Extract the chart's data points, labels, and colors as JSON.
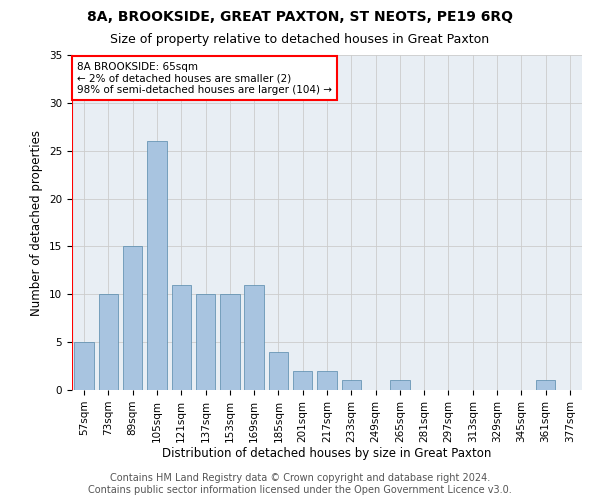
{
  "title": "8A, BROOKSIDE, GREAT PAXTON, ST NEOTS, PE19 6RQ",
  "subtitle": "Size of property relative to detached houses in Great Paxton",
  "xlabel": "Distribution of detached houses by size in Great Paxton",
  "ylabel": "Number of detached properties",
  "categories": [
    "57sqm",
    "73sqm",
    "89sqm",
    "105sqm",
    "121sqm",
    "137sqm",
    "153sqm",
    "169sqm",
    "185sqm",
    "201sqm",
    "217sqm",
    "233sqm",
    "249sqm",
    "265sqm",
    "281sqm",
    "297sqm",
    "313sqm",
    "329sqm",
    "345sqm",
    "361sqm",
    "377sqm"
  ],
  "values": [
    5,
    10,
    15,
    26,
    11,
    10,
    10,
    11,
    4,
    2,
    2,
    1,
    0,
    1,
    0,
    0,
    0,
    0,
    0,
    1,
    0
  ],
  "bar_color": "#a8c4e0",
  "bar_edge_color": "#5588aa",
  "annotation_box_text": "8A BROOKSIDE: 65sqm\n← 2% of detached houses are smaller (2)\n98% of semi-detached houses are larger (104) →",
  "annotation_box_color": "white",
  "annotation_box_edge_color": "red",
  "highlight_line_color": "red",
  "ylim": [
    0,
    35
  ],
  "yticks": [
    0,
    5,
    10,
    15,
    20,
    25,
    30,
    35
  ],
  "grid_color": "#cccccc",
  "bg_color": "#e8eef4",
  "footer_line1": "Contains HM Land Registry data © Crown copyright and database right 2024.",
  "footer_line2": "Contains public sector information licensed under the Open Government Licence v3.0.",
  "title_fontsize": 10,
  "subtitle_fontsize": 9,
  "label_fontsize": 8.5,
  "tick_fontsize": 7.5,
  "footer_fontsize": 7,
  "annotation_fontsize": 7.5
}
